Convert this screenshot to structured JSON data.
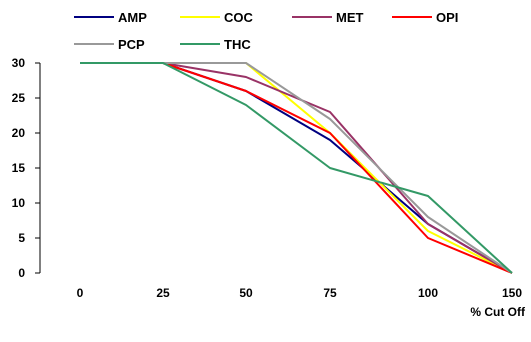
{
  "chart_data": {
    "type": "line",
    "title": "",
    "xlabel": "% Cut Off",
    "ylabel": "",
    "categories": [
      "0",
      "25",
      "50",
      "75",
      "100",
      "150"
    ],
    "ylim": [
      0,
      30
    ],
    "yticks": [
      0,
      5,
      10,
      15,
      20,
      25,
      30
    ],
    "grid": false,
    "legend_position": "top",
    "series": [
      {
        "name": "AMP",
        "color": "#000080",
        "values": [
          30,
          30,
          26,
          19,
          7,
          0
        ]
      },
      {
        "name": "COC",
        "color": "#FFFF00",
        "values": [
          30,
          30,
          30,
          20,
          6,
          0
        ]
      },
      {
        "name": "MET",
        "color": "#993366",
        "values": [
          30,
          30,
          28,
          23,
          7,
          0
        ]
      },
      {
        "name": "OPI",
        "color": "#FF0000",
        "values": [
          30,
          30,
          26,
          20,
          5,
          0
        ]
      },
      {
        "name": "PCP",
        "color": "#999999",
        "values": [
          30,
          30,
          30,
          22,
          8,
          0
        ]
      },
      {
        "name": "THC",
        "color": "#339966",
        "values": [
          30,
          30,
          24,
          15,
          11,
          0
        ]
      }
    ]
  }
}
